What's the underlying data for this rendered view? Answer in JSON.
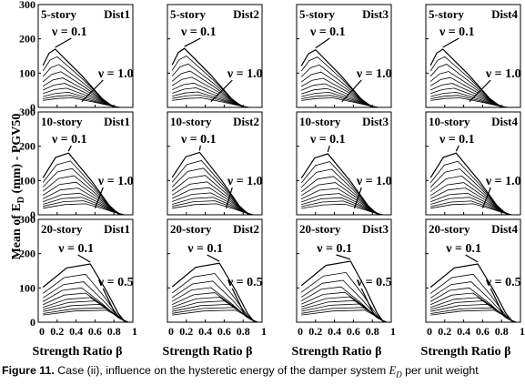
{
  "figure": {
    "ylabel_prefix": "Mean of  E",
    "ylabel_sub": "D",
    "ylabel_suffix": " (mm) - PGV50",
    "xlabel": "Strength Ratio β"
  },
  "caption": {
    "label": "Figure 11.",
    "text_before": " Case (ii), influence on the hysteretic energy of the damper system ",
    "var": "E",
    "var_sub": "D",
    "text_after": " per unit weight"
  },
  "chart_data": {
    "type": "line",
    "xlim": [
      0,
      1
    ],
    "ylim": [
      0,
      300
    ],
    "x_ticks": [
      "0",
      "0.2",
      "0.4",
      "0.6",
      "0.8",
      "1"
    ],
    "y_ticks": [
      "0",
      "100",
      "200",
      "300"
    ],
    "grid": false,
    "rows": [
      {
        "story": "5-story",
        "nu_low": "ν = 0.1",
        "nu_high": "ν = 1.0",
        "panels": [
          {
            "dist": "Dist1",
            "peaks": [
              [
                0.18,
                170
              ],
              [
                0.2,
                148
              ],
              [
                0.22,
                125
              ],
              [
                0.24,
                104
              ],
              [
                0.26,
                86
              ],
              [
                0.28,
                70
              ],
              [
                0.3,
                56
              ],
              [
                0.32,
                44
              ],
              [
                0.34,
                35
              ],
              [
                0.36,
                28
              ]
            ]
          },
          {
            "dist": "Dist2",
            "peaks": [
              [
                0.18,
                172
              ],
              [
                0.2,
                150
              ],
              [
                0.22,
                127
              ],
              [
                0.24,
                106
              ],
              [
                0.26,
                88
              ],
              [
                0.28,
                71
              ],
              [
                0.3,
                57
              ],
              [
                0.32,
                45
              ],
              [
                0.34,
                36
              ],
              [
                0.36,
                28
              ]
            ]
          },
          {
            "dist": "Dist3",
            "peaks": [
              [
                0.2,
                168
              ],
              [
                0.22,
                147
              ],
              [
                0.24,
                124
              ],
              [
                0.26,
                103
              ],
              [
                0.28,
                85
              ],
              [
                0.3,
                69
              ],
              [
                0.32,
                55
              ],
              [
                0.34,
                44
              ],
              [
                0.36,
                35
              ],
              [
                0.38,
                28
              ]
            ]
          },
          {
            "dist": "Dist4",
            "peaks": [
              [
                0.18,
                170
              ],
              [
                0.2,
                148
              ],
              [
                0.22,
                126
              ],
              [
                0.24,
                105
              ],
              [
                0.26,
                87
              ],
              [
                0.28,
                70
              ],
              [
                0.3,
                56
              ],
              [
                0.32,
                44
              ],
              [
                0.34,
                35
              ],
              [
                0.36,
                28
              ]
            ]
          }
        ]
      },
      {
        "story": "10-story",
        "nu_low": "ν = 0.1",
        "nu_high": "ν = 1.0",
        "panels": [
          {
            "dist": "Dist1",
            "peaks": [
              [
                0.32,
                180
              ],
              [
                0.34,
                157
              ],
              [
                0.36,
                135
              ],
              [
                0.38,
                114
              ],
              [
                0.4,
                95
              ],
              [
                0.42,
                78
              ],
              [
                0.44,
                63
              ],
              [
                0.46,
                51
              ],
              [
                0.48,
                41
              ],
              [
                0.5,
                32
              ]
            ]
          },
          {
            "dist": "Dist2",
            "peaks": [
              [
                0.34,
                182
              ],
              [
                0.36,
                158
              ],
              [
                0.38,
                136
              ],
              [
                0.4,
                115
              ],
              [
                0.42,
                96
              ],
              [
                0.44,
                79
              ],
              [
                0.46,
                64
              ],
              [
                0.48,
                51
              ],
              [
                0.5,
                41
              ],
              [
                0.52,
                32
              ]
            ]
          },
          {
            "dist": "Dist3",
            "peaks": [
              [
                0.33,
                178
              ],
              [
                0.35,
                155
              ],
              [
                0.37,
                133
              ],
              [
                0.39,
                112
              ],
              [
                0.41,
                94
              ],
              [
                0.43,
                77
              ],
              [
                0.45,
                62
              ],
              [
                0.47,
                50
              ],
              [
                0.49,
                40
              ],
              [
                0.51,
                31
              ]
            ]
          },
          {
            "dist": "Dist4",
            "peaks": [
              [
                0.32,
                180
              ],
              [
                0.34,
                156
              ],
              [
                0.36,
                134
              ],
              [
                0.38,
                113
              ],
              [
                0.4,
                94
              ],
              [
                0.42,
                78
              ],
              [
                0.44,
                63
              ],
              [
                0.46,
                51
              ],
              [
                0.48,
                40
              ],
              [
                0.5,
                32
              ]
            ]
          }
        ]
      },
      {
        "story": "20-story",
        "nu_low": "ν = 0.1",
        "nu_high": "ν = 0.5",
        "panels": [
          {
            "dist": "Dist1",
            "peaks": [
              [
                0.55,
                170
              ],
              [
                0.5,
                140
              ],
              [
                0.48,
                118
              ],
              [
                0.46,
                100
              ],
              [
                0.5,
                85
              ],
              [
                0.55,
                72
              ],
              [
                0.6,
                62
              ],
              [
                0.65,
                52
              ],
              [
                0.7,
                42
              ],
              [
                0.72,
                35
              ]
            ]
          },
          {
            "dist": "Dist2",
            "peaks": [
              [
                0.55,
                172
              ],
              [
                0.5,
                142
              ],
              [
                0.48,
                120
              ],
              [
                0.46,
                101
              ],
              [
                0.5,
                86
              ],
              [
                0.55,
                73
              ],
              [
                0.6,
                62
              ],
              [
                0.65,
                52
              ],
              [
                0.7,
                43
              ],
              [
                0.72,
                35
              ]
            ]
          },
          {
            "dist": "Dist3",
            "peaks": [
              [
                0.57,
                178
              ],
              [
                0.52,
                145
              ],
              [
                0.49,
                122
              ],
              [
                0.47,
                103
              ],
              [
                0.51,
                87
              ],
              [
                0.56,
                74
              ],
              [
                0.61,
                63
              ],
              [
                0.66,
                53
              ],
              [
                0.7,
                43
              ],
              [
                0.72,
                35
              ]
            ]
          },
          {
            "dist": "Dist4",
            "peaks": [
              [
                0.55,
                170
              ],
              [
                0.5,
                140
              ],
              [
                0.48,
                118
              ],
              [
                0.46,
                100
              ],
              [
                0.5,
                85
              ],
              [
                0.55,
                72
              ],
              [
                0.6,
                62
              ],
              [
                0.65,
                52
              ],
              [
                0.7,
                42
              ],
              [
                0.72,
                35
              ]
            ]
          }
        ]
      }
    ]
  }
}
